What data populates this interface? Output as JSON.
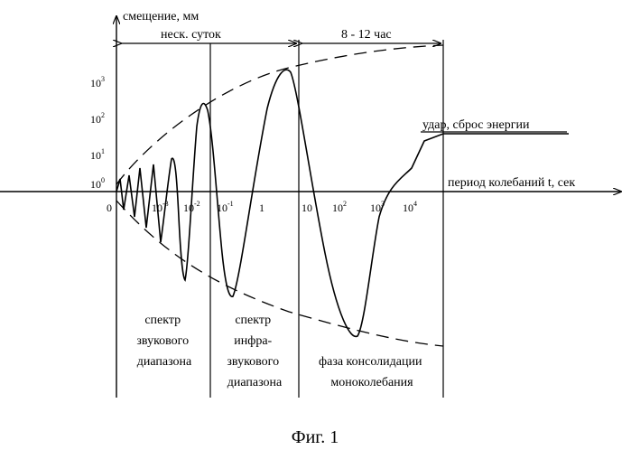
{
  "axes": {
    "y_label": "смещение, мм",
    "x_label": "период колебаний t, сек",
    "y_ticks": [
      {
        "base": "10",
        "exp": "3"
      },
      {
        "base": "10",
        "exp": "2"
      },
      {
        "base": "10",
        "exp": "1"
      },
      {
        "base": "10",
        "exp": "0"
      }
    ],
    "x_ticks": [
      {
        "base": "0",
        "exp": ""
      },
      {
        "base": "10",
        "exp": "-3"
      },
      {
        "base": "10",
        "exp": "-2"
      },
      {
        "base": "10",
        "exp": "-1"
      },
      {
        "base": "1",
        "exp": ""
      },
      {
        "base": "10",
        "exp": ""
      },
      {
        "base": "10",
        "exp": "2"
      },
      {
        "base": "10",
        "exp": "3"
      },
      {
        "base": "10",
        "exp": "4"
      }
    ]
  },
  "duration_labels": {
    "left": "неск. суток",
    "right": "8 - 12 час"
  },
  "event_label": "удар, сброс энергии",
  "regions": [
    {
      "lines": [
        "спектр",
        "звукового",
        "диапазона"
      ]
    },
    {
      "lines": [
        "спектр",
        "инфра-",
        "звукового",
        "диапазона"
      ]
    },
    {
      "lines": [
        "фаза консолидации",
        "моноколебания"
      ]
    }
  ],
  "caption": "Фиг. 1",
  "colors": {
    "ink": "#000000",
    "background": "#ffffff"
  }
}
